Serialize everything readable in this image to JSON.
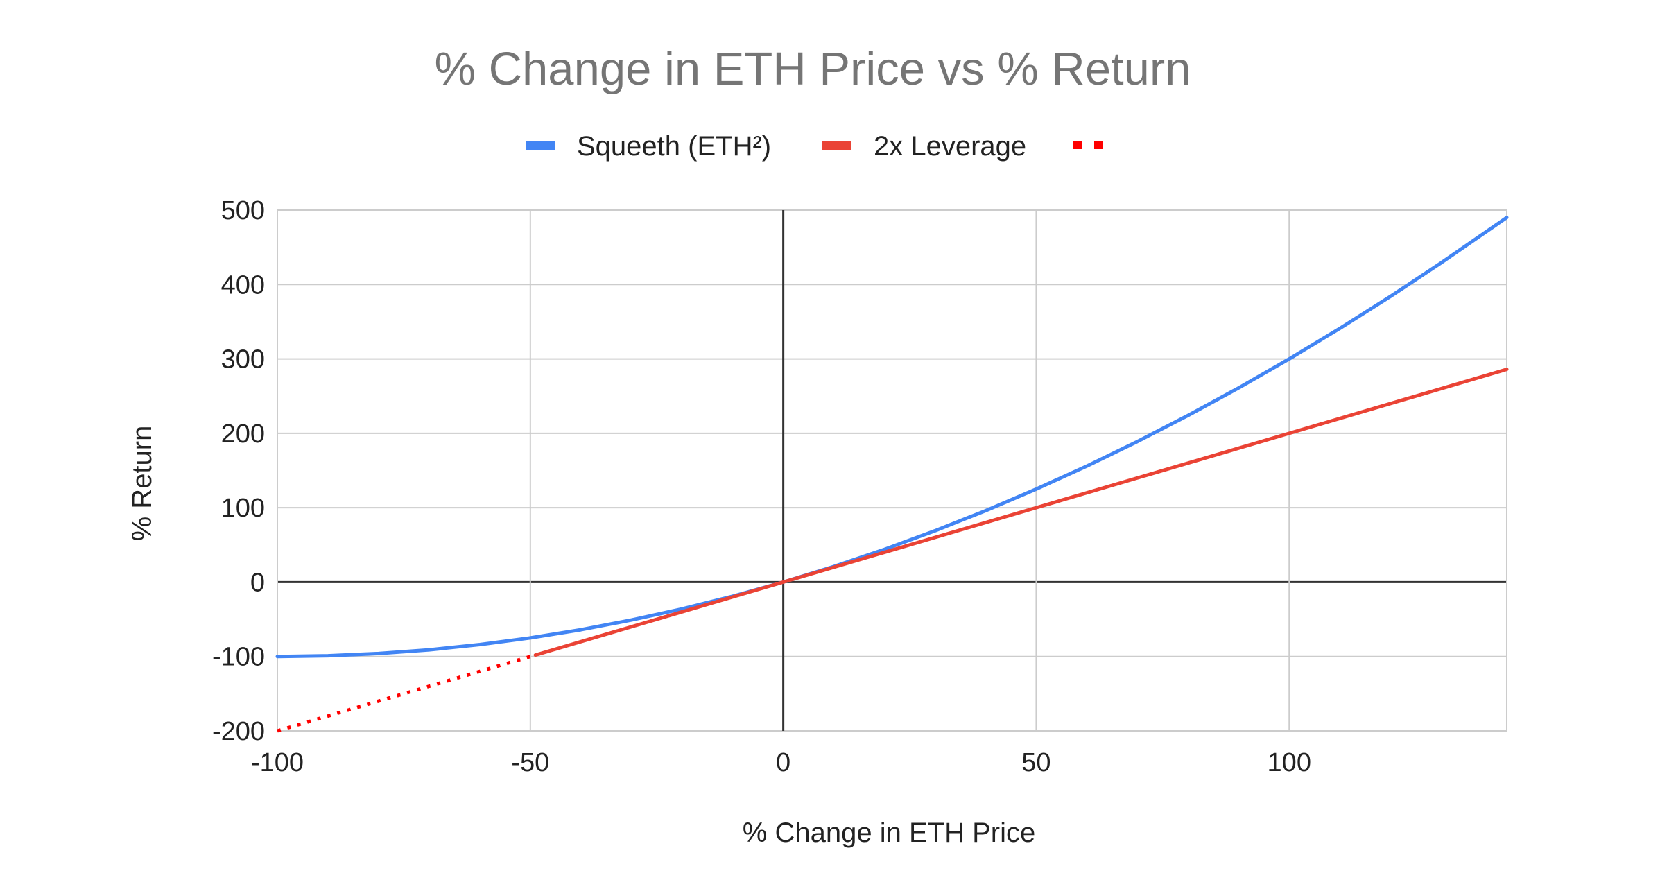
{
  "chart_data": {
    "type": "line",
    "title": "% Change in ETH Price vs % Return",
    "xlabel": "% Change in ETH Price",
    "ylabel": "% Return",
    "xlim": [
      -100,
      143
    ],
    "ylim": [
      -200,
      500
    ],
    "xticks": [
      -100,
      -50,
      0,
      50,
      100
    ],
    "yticks": [
      500,
      400,
      300,
      200,
      100,
      0,
      -100,
      -200
    ],
    "grid": true,
    "legend_position": "top",
    "legend": [
      {
        "label": "Squeeth (ETH²)",
        "color": "#4285f4",
        "style": "solid"
      },
      {
        "label": "2x Leverage",
        "color": "#ea4335",
        "style": "solid"
      },
      {
        "label": "",
        "color": "#ff0000",
        "style": "dotted"
      }
    ],
    "series": [
      {
        "name": "Squeeth (ETH²)",
        "color": "#4285f4",
        "style": "solid",
        "x": [
          -100,
          -90,
          -80,
          -70,
          -60,
          -50,
          -40,
          -30,
          -20,
          -10,
          0,
          10,
          20,
          30,
          40,
          50,
          60,
          70,
          80,
          90,
          100,
          110,
          120,
          130,
          143
        ],
        "y": [
          -100,
          -99,
          -96,
          -91,
          -84,
          -75,
          -64,
          -51,
          -36,
          -19,
          0,
          21,
          44,
          69,
          96,
          125,
          156,
          189,
          224,
          261,
          300,
          341,
          384,
          429,
          490
        ]
      },
      {
        "name": "2x Leverage",
        "color": "#ea4335",
        "style": "solid",
        "x": [
          -49,
          0,
          50,
          100,
          143
        ],
        "y": [
          -98,
          0,
          100,
          200,
          286
        ]
      },
      {
        "name": "",
        "color": "#ff0000",
        "style": "dotted",
        "x": [
          -100,
          -49
        ],
        "y": [
          -200,
          -98
        ]
      }
    ]
  }
}
